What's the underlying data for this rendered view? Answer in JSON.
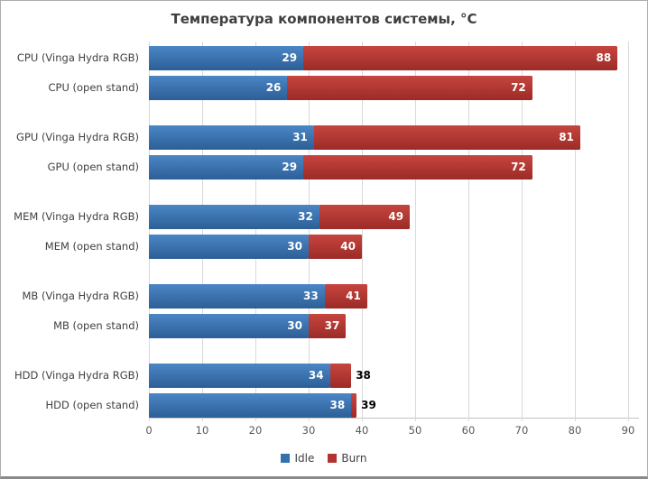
{
  "title": "Температура компонентов системы, °C",
  "colors": {
    "idle_top": "#4B86C6",
    "idle_bottom": "#2C5F96",
    "idle_solid": "#3470AD",
    "burn_top": "#C6453F",
    "burn_bottom": "#9C2B27",
    "burn_solid": "#B23330",
    "gridline": "#D9D9D9",
    "axis_line": "#C3C3C3",
    "title_text": "#404040",
    "category_text": "#404040",
    "axis_text": "#595959",
    "label_inside": "#FFFFFF",
    "label_outside": "#000000"
  },
  "x_axis": {
    "min": 0,
    "max": 90,
    "ticks": [
      0,
      10,
      20,
      30,
      40,
      50,
      60,
      70,
      80,
      90
    ]
  },
  "legend": {
    "items": [
      {
        "label": "Idle",
        "series": "idle"
      },
      {
        "label": "Burn",
        "series": "burn"
      }
    ]
  },
  "chart_data": {
    "type": "bar",
    "orientation": "horizontal",
    "title": "Температура компонентов системы, °C",
    "xlabel": "",
    "ylabel": "",
    "xlim": [
      0,
      90
    ],
    "grid": true,
    "legend_position": "bottom",
    "series_names": [
      "Idle",
      "Burn"
    ],
    "note": "Burn segment is drawn from the Idle value to the Burn value (stacked overlay); labels show absolute temperatures",
    "categories": [
      "CPU (Vinga Hydra RGB)",
      "CPU (open stand)",
      "GPU (Vinga Hydra RGB)",
      "GPU (open stand)",
      "MEM (Vinga Hydra RGB)",
      "MEM (open stand)",
      "MB (Vinga Hydra RGB)",
      "MB (open stand)",
      "HDD (Vinga Hydra RGB)",
      "HDD (open stand)"
    ],
    "series": [
      {
        "name": "Idle",
        "values": [
          29,
          26,
          31,
          29,
          32,
          30,
          33,
          30,
          34,
          38
        ]
      },
      {
        "name": "Burn",
        "values": [
          88,
          72,
          81,
          72,
          49,
          40,
          41,
          37,
          38,
          39
        ]
      }
    ],
    "groups": [
      {
        "rows": [
          {
            "category": "CPU (Vinga Hydra RGB)",
            "idle": 29,
            "burn": 88,
            "burn_label_position": "inside"
          },
          {
            "category": "CPU (open stand)",
            "idle": 26,
            "burn": 72,
            "burn_label_position": "inside"
          }
        ]
      },
      {
        "rows": [
          {
            "category": "GPU (Vinga Hydra RGB)",
            "idle": 31,
            "burn": 81,
            "burn_label_position": "inside"
          },
          {
            "category": "GPU (open stand)",
            "idle": 29,
            "burn": 72,
            "burn_label_position": "inside"
          }
        ]
      },
      {
        "rows": [
          {
            "category": "MEM (Vinga Hydra RGB)",
            "idle": 32,
            "burn": 49,
            "burn_label_position": "inside"
          },
          {
            "category": "MEM (open stand)",
            "idle": 30,
            "burn": 40,
            "burn_label_position": "inside"
          }
        ]
      },
      {
        "rows": [
          {
            "category": "MB (Vinga Hydra RGB)",
            "idle": 33,
            "burn": 41,
            "burn_label_position": "inside"
          },
          {
            "category": "MB (open stand)",
            "idle": 30,
            "burn": 37,
            "burn_label_position": "inside"
          }
        ]
      },
      {
        "rows": [
          {
            "category": "HDD (Vinga Hydra RGB)",
            "idle": 34,
            "burn": 38,
            "burn_label_position": "outside"
          },
          {
            "category": "HDD (open stand)",
            "idle": 38,
            "burn": 39,
            "burn_label_position": "outside"
          }
        ]
      }
    ]
  }
}
